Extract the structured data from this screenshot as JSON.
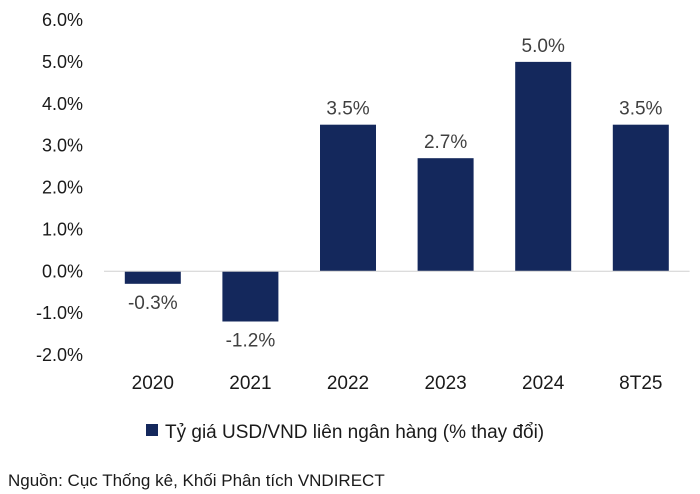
{
  "chart_data": {
    "type": "bar",
    "categories": [
      "2020",
      "2021",
      "2022",
      "2023",
      "2024",
      "8T25"
    ],
    "series": [
      {
        "name": "Tỷ giá USD/VND liên ngân hàng (% thay đổi)",
        "values": [
          -0.3,
          -1.2,
          3.5,
          2.7,
          5.0,
          3.5
        ],
        "labels": [
          "-0.3%",
          "-1.2%",
          "3.5%",
          "2.7%",
          "5.0%",
          "3.5%"
        ],
        "color": "#14285c"
      }
    ],
    "yticks": [
      "6.0%",
      "5.0%",
      "4.0%",
      "3.0%",
      "2.0%",
      "1.0%",
      "0.0%",
      "-1.0%",
      "-2.0%"
    ],
    "ylim": [
      -2.0,
      6.0
    ],
    "grid": false,
    "legend_position": "bottom",
    "source": "Nguồn: Cục Thống kê, Khối Phân tích VNDIRECT"
  }
}
